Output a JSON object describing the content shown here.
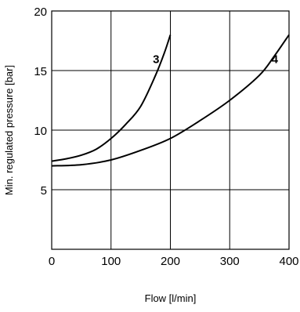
{
  "chart_data": {
    "type": "line",
    "title": "",
    "xlabel": "Flow [l/min]",
    "ylabel": "Min. regulated pressure [bar]",
    "xlim": [
      0,
      400
    ],
    "ylim": [
      0,
      20
    ],
    "x_ticks": [
      0,
      100,
      200,
      300,
      400
    ],
    "y_ticks": [
      5,
      10,
      15,
      20
    ],
    "grid": true,
    "legend": "none",
    "series": [
      {
        "label": "3",
        "color": "#000000",
        "x": [
          0,
          25,
          50,
          75,
          100,
          125,
          150,
          175,
          190,
          200
        ],
        "y": [
          7.4,
          7.6,
          7.9,
          8.4,
          9.3,
          10.5,
          12.0,
          14.6,
          16.5,
          18.0
        ]
      },
      {
        "label": "4",
        "color": "#000000",
        "x": [
          0,
          50,
          100,
          150,
          200,
          250,
          300,
          350,
          375,
          400
        ],
        "y": [
          7.0,
          7.1,
          7.5,
          8.3,
          9.3,
          10.8,
          12.5,
          14.6,
          16.2,
          18.0
        ]
      }
    ]
  }
}
